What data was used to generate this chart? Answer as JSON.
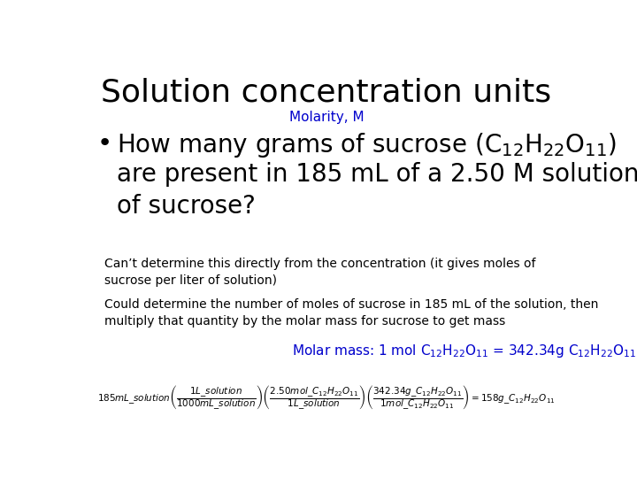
{
  "title": "Solution concentration units",
  "subtitle": "Molarity, M",
  "subtitle_color": "#0000CC",
  "note1": "Can’t determine this directly from the concentration (it gives moles of\nsucrose per liter of solution)",
  "note2": "Could determine the number of moles of sucrose in 185 mL of the solution, then\nmultiply that quantity by the molar mass for sucrose to get mass",
  "molar_mass_color": "#0000CC",
  "background_color": "#FFFFFF",
  "title_fontsize": 26,
  "subtitle_fontsize": 11,
  "bullet_fontsize": 20,
  "note_fontsize": 10,
  "molar_fontsize": 11,
  "eq_fontsize": 7.5
}
